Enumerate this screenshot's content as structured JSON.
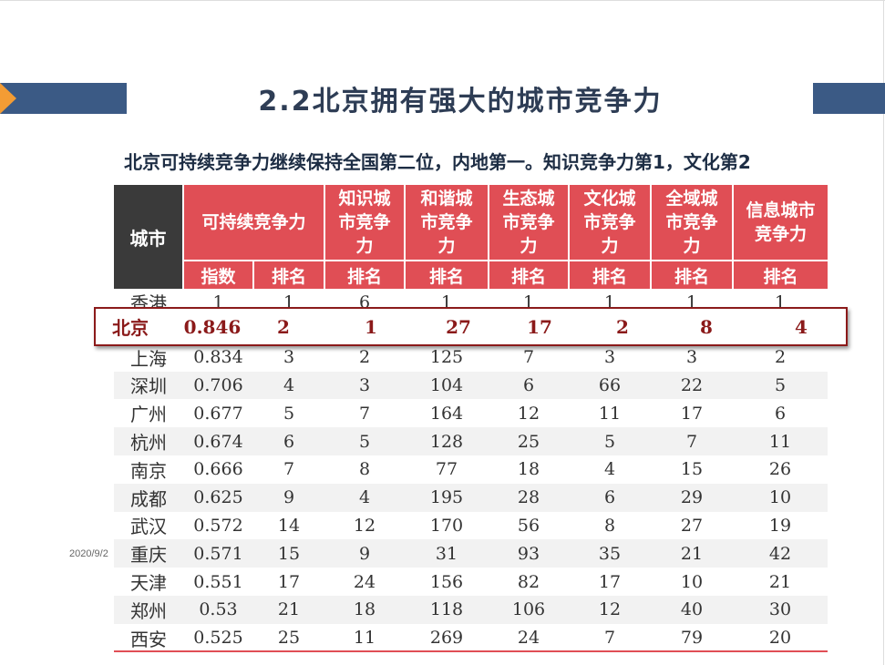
{
  "title": "2.2北京拥有强大的城市竞争力",
  "subtitle": "北京可持续竞争力继续保持全国第二位，内地第一。知识竞争力第1，文化第2",
  "date": "2020/9/2",
  "colors": {
    "bar": "#3b5a85",
    "arrow": "#f39c34",
    "header_red": "#e04e55",
    "header_dark": "#3a3a3a",
    "highlight": "#8b1a1a"
  },
  "table": {
    "city_header": "城市",
    "group_headers": [
      "可持续竞争力",
      "知识城市竞争力",
      "和谐城市竞争力",
      "生态城市竞争力",
      "文化城市竞争力",
      "全域城市竞争力",
      "信息城市竞争力"
    ],
    "sub_headers": [
      "指数",
      "排名",
      "排名",
      "排名",
      "排名",
      "排名",
      "排名",
      "排名"
    ],
    "rows": [
      [
        "香港",
        "1",
        "1",
        "6",
        "1",
        "1",
        "1",
        "1",
        "1"
      ],
      [
        "北京",
        "0.846",
        "2",
        "1",
        "27",
        "17",
        "2",
        "8",
        "4"
      ],
      [
        "上海",
        "0.834",
        "3",
        "2",
        "125",
        "7",
        "3",
        "3",
        "2"
      ],
      [
        "深圳",
        "0.706",
        "4",
        "3",
        "104",
        "6",
        "66",
        "22",
        "5"
      ],
      [
        "广州",
        "0.677",
        "5",
        "7",
        "164",
        "12",
        "11",
        "17",
        "6"
      ],
      [
        "杭州",
        "0.674",
        "6",
        "5",
        "128",
        "25",
        "5",
        "7",
        "11"
      ],
      [
        "南京",
        "0.666",
        "7",
        "8",
        "77",
        "18",
        "4",
        "15",
        "26"
      ],
      [
        "成都",
        "0.625",
        "9",
        "4",
        "195",
        "28",
        "6",
        "29",
        "10"
      ],
      [
        "武汉",
        "0.572",
        "14",
        "12",
        "170",
        "56",
        "8",
        "27",
        "19"
      ],
      [
        "重庆",
        "0.571",
        "15",
        "9",
        "31",
        "93",
        "35",
        "21",
        "42"
      ],
      [
        "天津",
        "0.551",
        "17",
        "24",
        "156",
        "82",
        "17",
        "10",
        "21"
      ],
      [
        "郑州",
        "0.53",
        "21",
        "18",
        "118",
        "106",
        "12",
        "40",
        "30"
      ],
      [
        "西安",
        "0.525",
        "25",
        "11",
        "269",
        "24",
        "7",
        "79",
        "20"
      ]
    ]
  }
}
